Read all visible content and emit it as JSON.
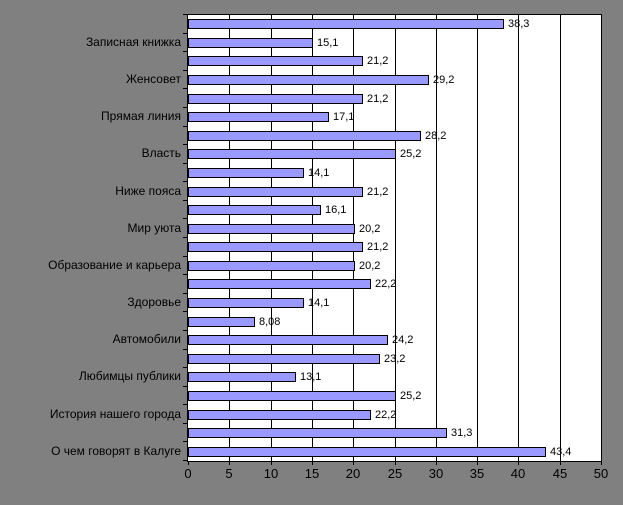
{
  "chart_data": {
    "type": "bar",
    "orientation": "horizontal",
    "title": "",
    "xlabel": "",
    "ylabel": "",
    "xlim": [
      0,
      50
    ],
    "x_ticks": [
      "0",
      "5",
      "10",
      "15",
      "20",
      "25",
      "30",
      "35",
      "40",
      "45",
      "50"
    ],
    "grid": true,
    "legend": "none",
    "bars": [
      {
        "label": "",
        "value": 38.3,
        "value_label": "38,3"
      },
      {
        "label": "Записная книжка",
        "value": 15.1,
        "value_label": "15,1"
      },
      {
        "label": "",
        "value": 21.2,
        "value_label": "21,2"
      },
      {
        "label": "Женсовет",
        "value": 29.2,
        "value_label": "29,2"
      },
      {
        "label": "",
        "value": 21.2,
        "value_label": "21,2"
      },
      {
        "label": "Прямая линия",
        "value": 17.1,
        "value_label": "17,1"
      },
      {
        "label": "",
        "value": 28.2,
        "value_label": "28,2"
      },
      {
        "label": "Власть",
        "value": 25.2,
        "value_label": "25,2"
      },
      {
        "label": "",
        "value": 14.1,
        "value_label": "14,1"
      },
      {
        "label": "Ниже пояса",
        "value": 21.2,
        "value_label": "21,2"
      },
      {
        "label": "",
        "value": 16.1,
        "value_label": "16,1"
      },
      {
        "label": "Мир уюта",
        "value": 20.2,
        "value_label": "20,2"
      },
      {
        "label": "",
        "value": 21.2,
        "value_label": "21,2"
      },
      {
        "label": "Образование и карьера",
        "value": 20.2,
        "value_label": "20,2"
      },
      {
        "label": "",
        "value": 22.2,
        "value_label": "22,2"
      },
      {
        "label": "Здоровье",
        "value": 14.1,
        "value_label": "14,1"
      },
      {
        "label": "",
        "value": 8.08,
        "value_label": "8,08"
      },
      {
        "label": "Автомобили",
        "value": 24.2,
        "value_label": "24,2"
      },
      {
        "label": "",
        "value": 23.2,
        "value_label": "23,2"
      },
      {
        "label": "Любимцы публики",
        "value": 13.1,
        "value_label": "13,1"
      },
      {
        "label": "",
        "value": 25.2,
        "value_label": "25,2"
      },
      {
        "label": "История нашего города",
        "value": 22.2,
        "value_label": "22,2"
      },
      {
        "label": "",
        "value": 31.3,
        "value_label": "31,3"
      },
      {
        "label": "О чем говорят в Калуге",
        "value": 43.4,
        "value_label": "43,4"
      }
    ],
    "colors": {
      "bar_fill": "#9999FF",
      "bar_border": "#000000",
      "plot_background": "#FFFFFF",
      "page_background": "#808080",
      "gridline": "#000000",
      "text": "#000000"
    }
  }
}
